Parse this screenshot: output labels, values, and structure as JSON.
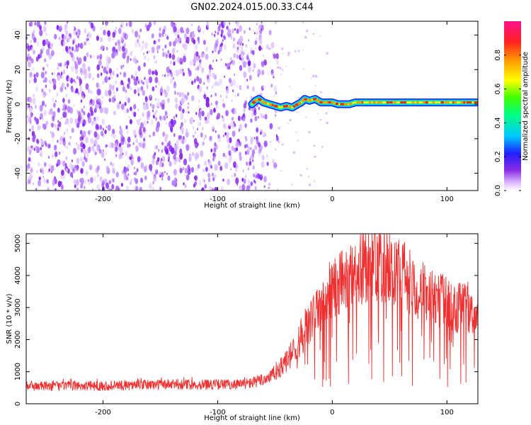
{
  "chart_data": [
    {
      "type": "heatmap",
      "title": "GN02.2024.015.00.33.C44",
      "xlabel": "Height of straight line (km)",
      "ylabel": "Frequency (Hz)",
      "xlim": [
        -267,
        127
      ],
      "ylim": [
        -50,
        48
      ],
      "xticks": [
        -200,
        -100,
        0,
        100
      ],
      "yticks": [
        -40,
        -20,
        0,
        20,
        40
      ],
      "xtick_labels": [
        "-200",
        "-100",
        "0",
        "100"
      ],
      "ytick_labels": [
        "-40",
        "-20",
        "0",
        "20",
        "40"
      ],
      "noise_region_x": [
        -267,
        -60
      ],
      "signal_trace": {
        "x": [
          -70,
          -67,
          -64,
          -60,
          -55,
          -50,
          -45,
          -40,
          -35,
          -30,
          -27,
          -24,
          -20,
          -15,
          -10,
          -5,
          0,
          5,
          10,
          15,
          20,
          30,
          40,
          50,
          60,
          70,
          80,
          90,
          100,
          110,
          120,
          127
        ],
        "y": [
          0,
          2,
          3,
          1,
          0,
          -1,
          -2,
          -1,
          -2,
          0,
          1,
          3,
          2,
          3,
          1,
          1,
          1,
          0,
          0,
          0,
          1,
          1,
          1,
          1,
          1,
          1,
          1,
          1,
          1,
          1,
          1,
          1
        ]
      },
      "colorbar": {
        "label": "Normalized spectral amplitude",
        "range": [
          0,
          1
        ],
        "ticks": [
          0.0,
          0.2,
          0.4,
          0.6,
          0.8
        ],
        "tick_labels": [
          "0.0",
          "0.2",
          "0.4",
          "0.6",
          "0.8"
        ]
      }
    },
    {
      "type": "line",
      "xlabel": "Height of straight line (km)",
      "ylabel": "SNR (10 * v/v)",
      "xlim": [
        -267,
        127
      ],
      "ylim": [
        0,
        5300
      ],
      "xticks": [
        -200,
        -100,
        0,
        100
      ],
      "yticks": [
        0,
        1000,
        2000,
        3000,
        4000,
        5000
      ],
      "xtick_labels": [
        "-200",
        "-100",
        "0",
        "100"
      ],
      "ytick_labels": [
        "0",
        "1000",
        "2000",
        "3000",
        "4000",
        "5000"
      ],
      "color": "#f03030",
      "series": [
        {
          "name": "SNR",
          "x": [
            -267,
            -250,
            -230,
            -200,
            -180,
            -150,
            -120,
            -100,
            -80,
            -70,
            -60,
            -50,
            -40,
            -30,
            -20,
            -10,
            0,
            10,
            20,
            30,
            40,
            50,
            60,
            70,
            80,
            90,
            100,
            110,
            120,
            127
          ],
          "values": [
            550,
            550,
            560,
            560,
            580,
            600,
            600,
            600,
            610,
            650,
            750,
            950,
            1300,
            1850,
            2500,
            3000,
            3500,
            3900,
            4100,
            4300,
            4350,
            4250,
            4000,
            3700,
            3500,
            3300,
            3100,
            3000,
            2900,
            2900
          ]
        }
      ]
    }
  ]
}
